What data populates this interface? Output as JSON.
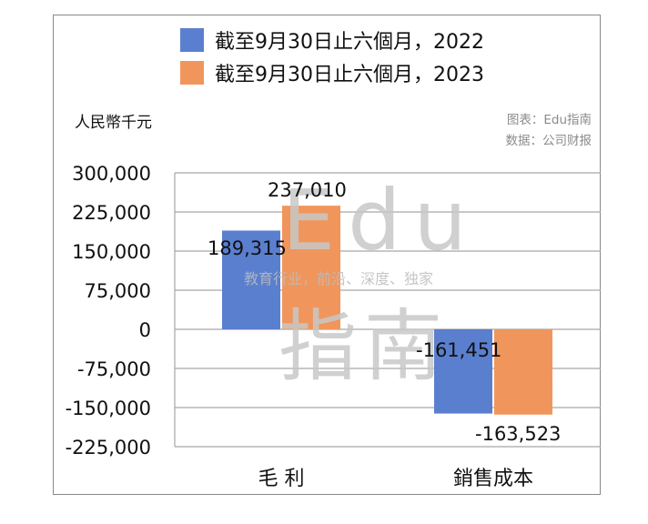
{
  "legend": [
    {
      "label": "截至9月30日止六個月，2022",
      "color": "#5b7fcf"
    },
    {
      "label": "截至9月30日止六個月，2023",
      "color": "#f0965c"
    }
  ],
  "unit_label": "人民幣千元",
  "credit": {
    "line1": "图表：Edu指南",
    "line2": "数据：公司财报"
  },
  "watermark": {
    "brand": "Edu",
    "brand_cn": "指南",
    "tagline": "教育行业，前沿、深度、独家"
  },
  "chart_data": {
    "type": "bar",
    "categories": [
      "毛 利",
      "銷售成本"
    ],
    "series": [
      {
        "name": "截至9月30日止六個月，2022",
        "values": [
          189315,
          -161451
        ],
        "labels": [
          "189,315",
          "-161,451"
        ]
      },
      {
        "name": "截至9月30日止六個月，2023",
        "values": [
          237010,
          -163523
        ],
        "labels": [
          "237,010",
          "-163,523"
        ]
      }
    ],
    "yticks": [
      "300,000",
      "225,000",
      "150,000",
      "75,000",
      "0",
      "-75,000",
      "-150,000",
      "-225,000"
    ],
    "ytick_values": [
      300000,
      225000,
      150000,
      75000,
      0,
      -75000,
      -150000,
      -225000
    ],
    "ylim": [
      -225000,
      300000
    ],
    "grid": true,
    "legend_position": "top"
  }
}
